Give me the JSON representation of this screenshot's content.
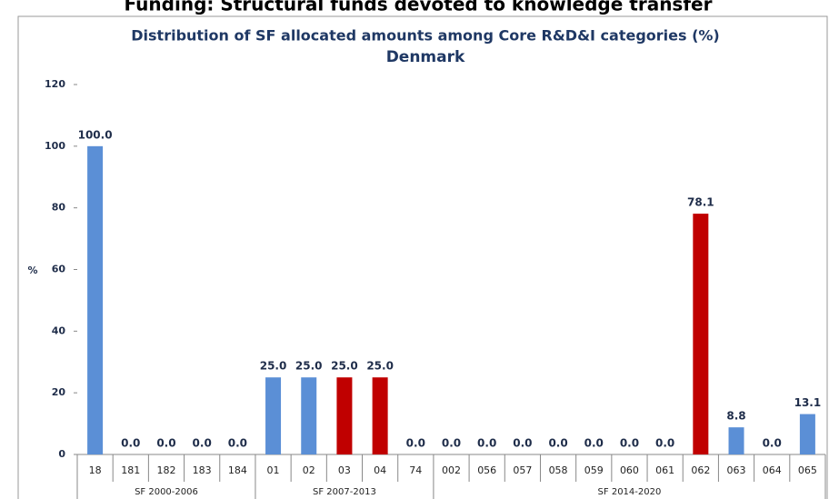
{
  "chart_data": {
    "type": "grouped-bar",
    "heading": "Funding: Structural funds devoted to knowledge transfer",
    "title": "Distribution of SF allocated amounts among Core R&D&I categories (%)",
    "subtitle": "Denmark",
    "y_label": "%",
    "ylim": [
      0,
      120
    ],
    "yticks": [
      0,
      20,
      40,
      60,
      80,
      100,
      120
    ],
    "groups": [
      {
        "name": "SF 2000-2006",
        "categories": [
          "18",
          "181",
          "182",
          "183",
          "184"
        ],
        "values": [
          100,
          0,
          0,
          0,
          0
        ],
        "value_labels": [
          "100.0",
          "0.0",
          "0.0",
          "0.0",
          "0.0"
        ],
        "colors": [
          "#5b8fd6",
          "#5b8fd6",
          "#5b8fd6",
          "#5b8fd6",
          "#5b8fd6"
        ]
      },
      {
        "name": "SF 2007-2013",
        "categories": [
          "01",
          "02",
          "03",
          "04",
          "74"
        ],
        "values": [
          25,
          25,
          25,
          25,
          0
        ],
        "value_labels": [
          "25.0",
          "25.0",
          "25.0",
          "25.0",
          "0.0"
        ],
        "colors": [
          "#5b8fd6",
          "#5b8fd6",
          "#c00000",
          "#c00000",
          "#5b8fd6"
        ]
      },
      {
        "name": "SF 2014-2020",
        "categories": [
          "002",
          "056",
          "057",
          "058",
          "059",
          "060",
          "061",
          "062",
          "063",
          "064",
          "065"
        ],
        "values": [
          0,
          0,
          0,
          0,
          0,
          0,
          0,
          78.1,
          8.8,
          0,
          13.1
        ],
        "value_labels": [
          "0.0",
          "0.0",
          "0.0",
          "0.0",
          "0.0",
          "0.0",
          "0.0",
          "78.1",
          "8.8",
          "0.0",
          "13.1"
        ],
        "colors": [
          "#5b8fd6",
          "#5b8fd6",
          "#5b8fd6",
          "#5b8fd6",
          "#5b8fd6",
          "#5b8fd6",
          "#5b8fd6",
          "#c00000",
          "#5b8fd6",
          "#5b8fd6",
          "#5b8fd6"
        ]
      }
    ]
  }
}
